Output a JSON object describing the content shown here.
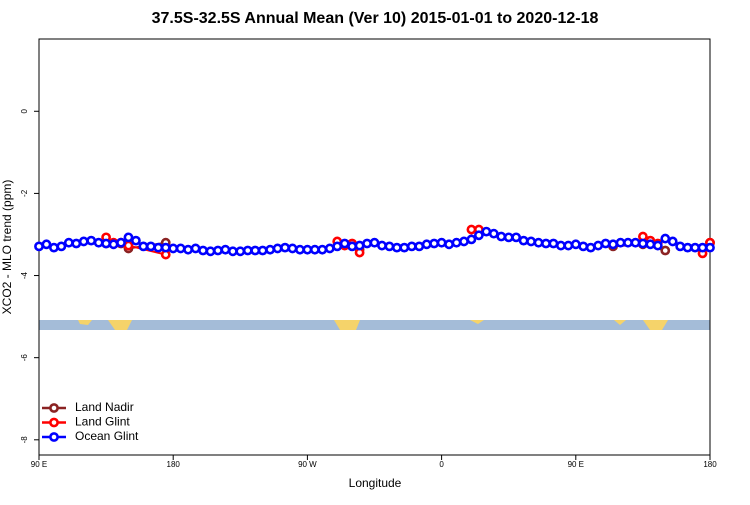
{
  "chart_data": {
    "type": "line",
    "title": "37.5S-32.5S Annual Mean (Ver 10)   2015-01-01 to 2020-12-18",
    "x_label": "Longitude",
    "y_label": "XCO2 - MLO trend (ppm)",
    "xlim": [
      90,
      540
    ],
    "xticks": [
      {
        "value": 90,
        "label": "90 E"
      },
      180,
      {
        "value": 270,
        "label": "90 W"
      },
      {
        "value": 360,
        "label": "0"
      },
      {
        "value": 450,
        "label": "90 E"
      },
      {
        "value": 540,
        "label": "180"
      }
    ],
    "ylim": [
      -8.37,
      1.76
    ],
    "yticks": [
      0,
      -2,
      -4,
      -6,
      -8
    ],
    "legend": "bottom-left",
    "series": [
      {
        "name": "Land Nadir",
        "color": "#8b2323",
        "x": [
          135,
          145,
          150,
          175,
          null,
          300,
          305,
          null,
          475,
          495,
          510,
          null,
          540
        ],
        "values": [
          -3.22,
          -3.22,
          -3.34,
          -3.2,
          null,
          -3.27,
          -3.37,
          null,
          -3.29,
          -3.24,
          -3.39,
          null,
          -3.2
        ]
      },
      {
        "name": "Land Glint",
        "color": "#ff0000",
        "x": [
          135,
          140,
          145,
          150,
          175,
          null,
          290,
          295,
          300,
          305,
          null,
          380,
          385,
          null,
          495,
          500,
          505,
          null,
          535,
          540
        ],
        "values": [
          -3.07,
          -3.2,
          -3.2,
          -3.27,
          -3.49,
          null,
          -3.17,
          -3.27,
          -3.22,
          -3.44,
          null,
          -2.88,
          -2.88,
          null,
          -3.05,
          -3.15,
          -3.22,
          null,
          -3.46,
          -3.2
        ]
      },
      {
        "name": "Ocean Glint",
        "color": "#0000ff",
        "x": [
          90,
          95,
          100,
          105,
          110,
          115,
          120,
          125,
          130,
          135,
          140,
          145,
          150,
          155,
          160,
          165,
          170,
          175,
          180,
          185,
          190,
          195,
          200,
          205,
          210,
          215,
          220,
          225,
          230,
          235,
          240,
          245,
          250,
          255,
          260,
          265,
          270,
          275,
          280,
          285,
          290,
          295,
          300,
          305,
          310,
          315,
          320,
          325,
          330,
          335,
          340,
          345,
          350,
          355,
          360,
          365,
          370,
          375,
          380,
          385,
          390,
          395,
          400,
          405,
          410,
          415,
          420,
          425,
          430,
          435,
          440,
          445,
          450,
          455,
          460,
          465,
          470,
          475,
          480,
          485,
          490,
          495,
          500,
          505,
          510,
          515,
          520,
          525,
          530,
          535,
          540
        ],
        "values": [
          -3.29,
          -3.24,
          -3.32,
          -3.29,
          -3.2,
          -3.22,
          -3.17,
          -3.15,
          -3.2,
          -3.22,
          -3.24,
          -3.2,
          -3.07,
          -3.15,
          -3.29,
          -3.29,
          -3.32,
          -3.32,
          -3.34,
          -3.34,
          -3.37,
          -3.34,
          -3.39,
          -3.41,
          -3.39,
          -3.37,
          -3.41,
          -3.41,
          -3.39,
          -3.39,
          -3.39,
          -3.37,
          -3.34,
          -3.32,
          -3.34,
          -3.37,
          -3.37,
          -3.37,
          -3.37,
          -3.34,
          -3.29,
          -3.22,
          -3.29,
          -3.27,
          -3.22,
          -3.2,
          -3.27,
          -3.29,
          -3.32,
          -3.32,
          -3.29,
          -3.29,
          -3.24,
          -3.22,
          -3.2,
          -3.24,
          -3.2,
          -3.17,
          -3.12,
          -3.02,
          -2.93,
          -2.98,
          -3.05,
          -3.07,
          -3.07,
          -3.15,
          -3.17,
          -3.2,
          -3.22,
          -3.22,
          -3.27,
          -3.27,
          -3.24,
          -3.29,
          -3.32,
          -3.27,
          -3.22,
          -3.24,
          -3.2,
          -3.2,
          -3.2,
          -3.22,
          -3.24,
          -3.27,
          -3.1,
          -3.17,
          -3.29,
          -3.32,
          -3.32,
          -3.32,
          -3.32
        ]
      }
    ]
  }
}
